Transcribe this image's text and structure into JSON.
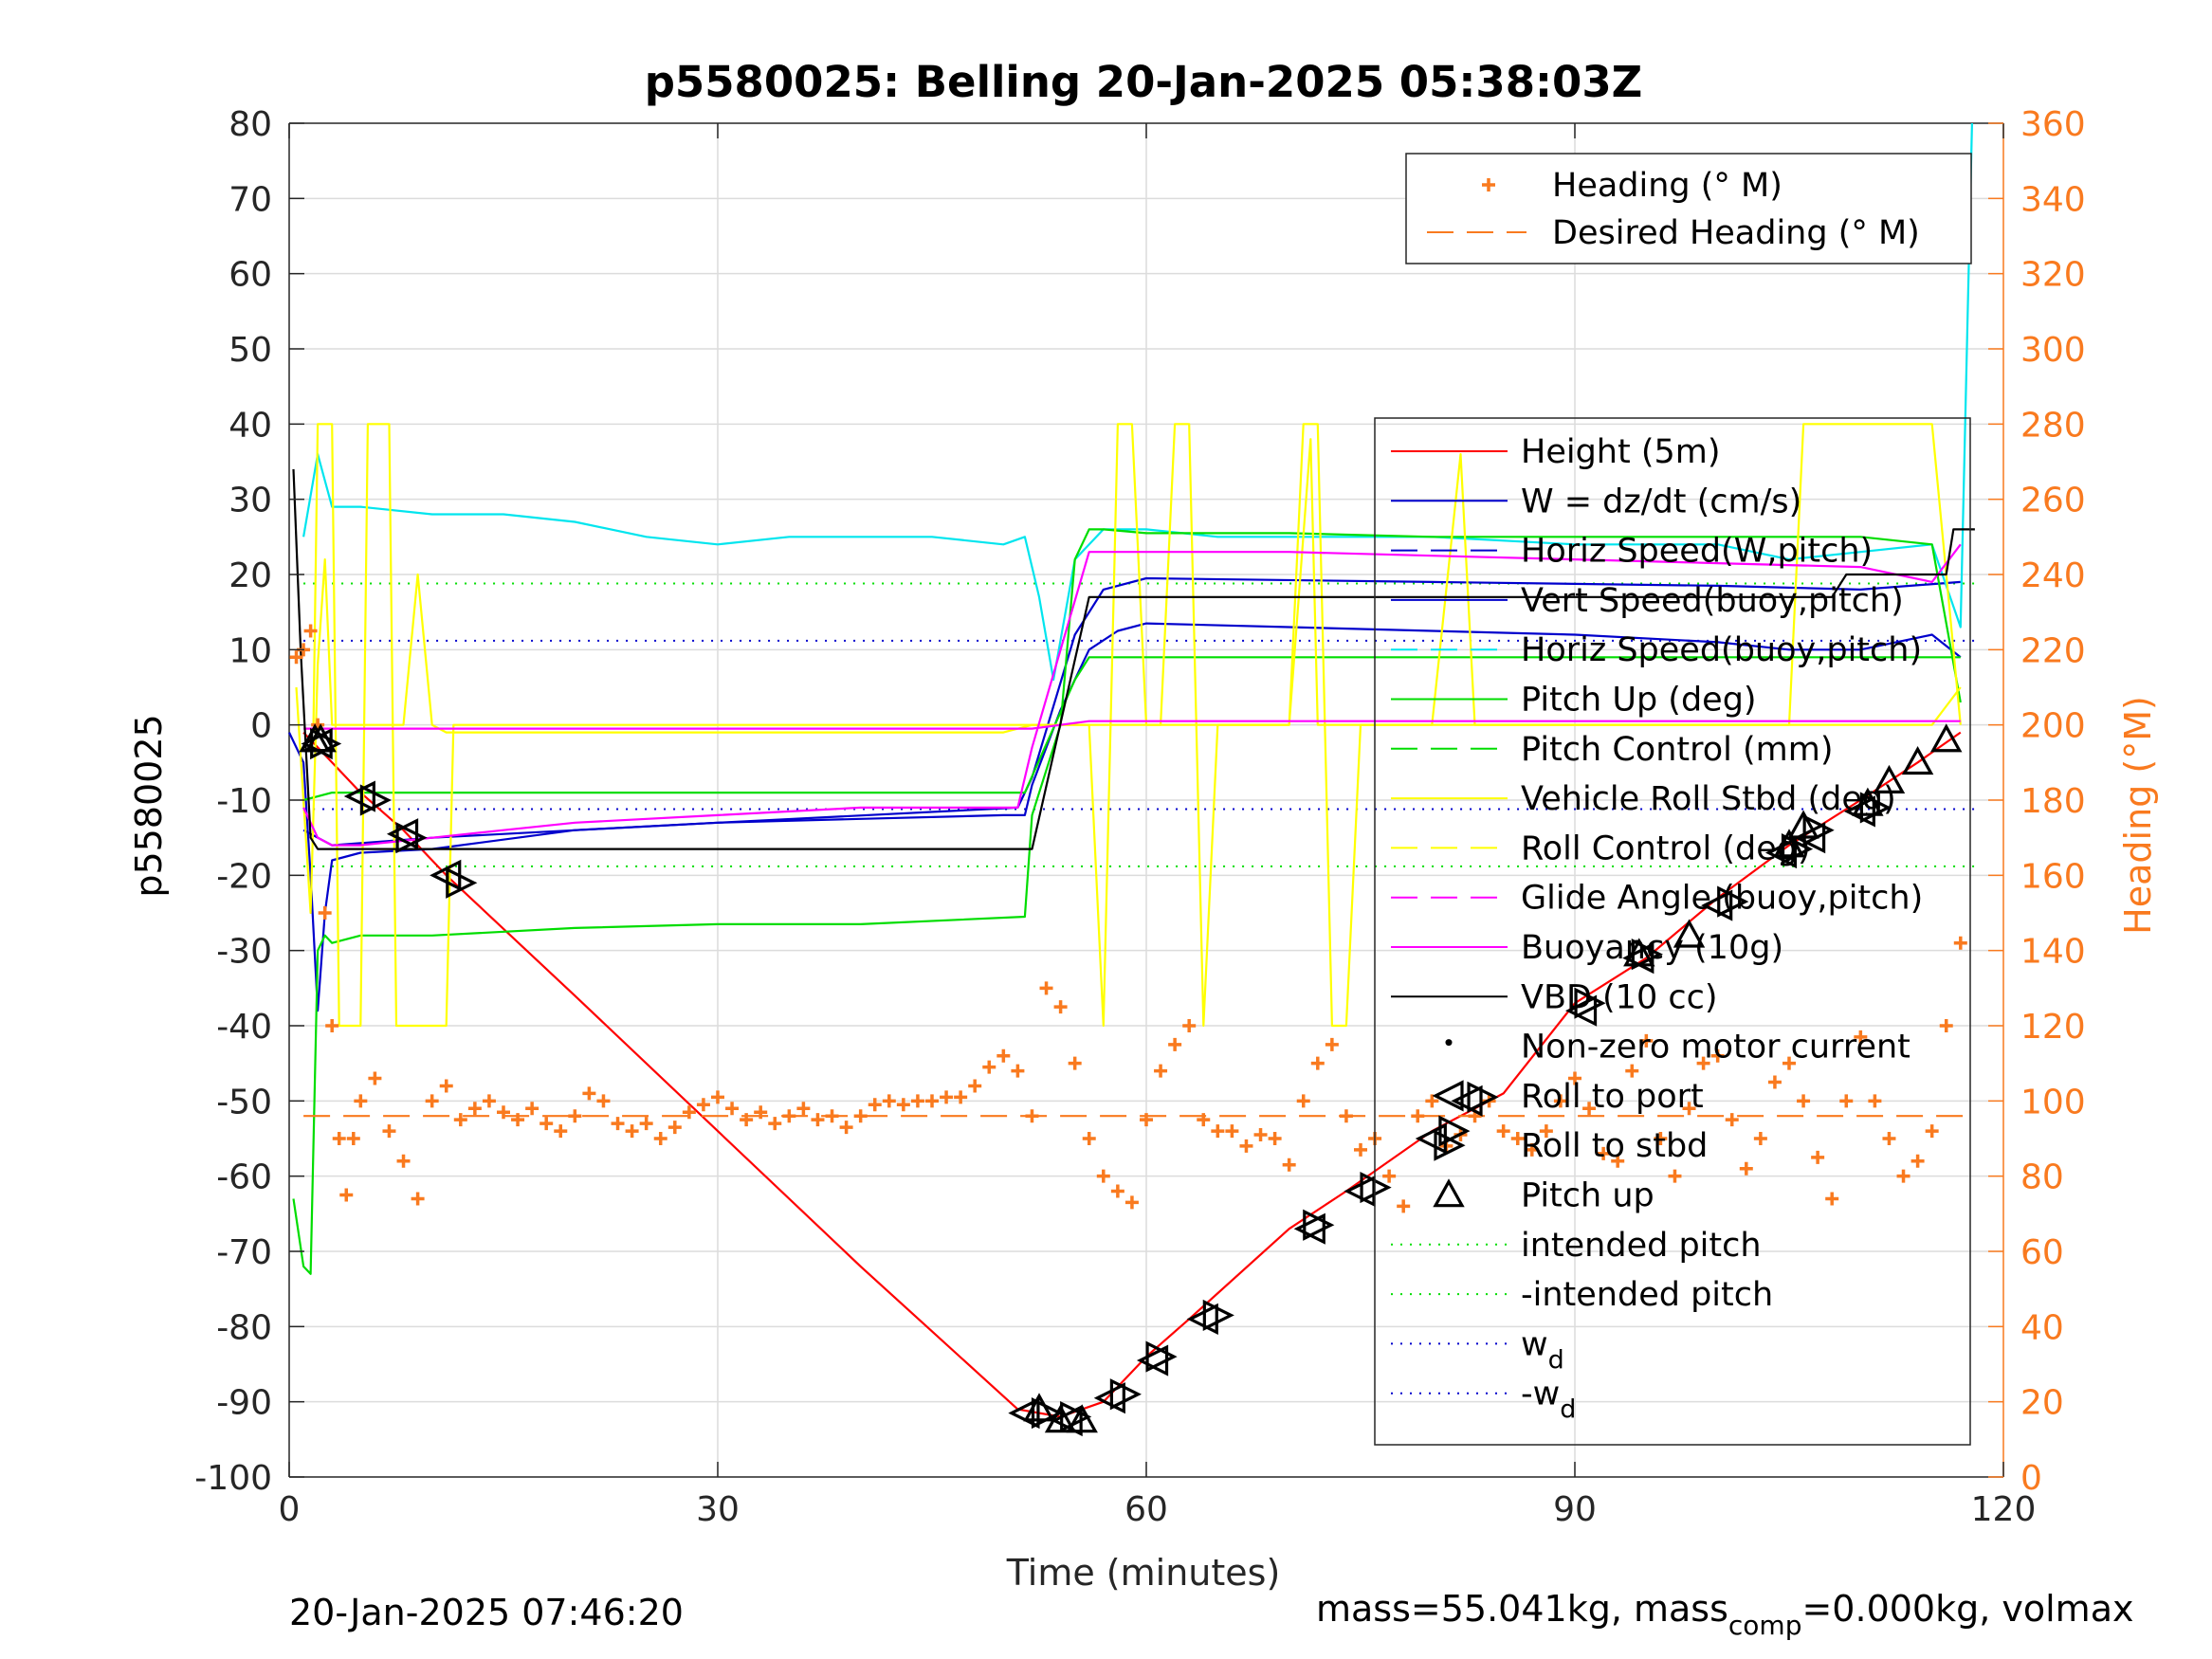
{
  "chart_data": {
    "type": "line",
    "title": "p5580025: Belling 20-Jan-2025 05:38:03Z",
    "xlabel": "Time (minutes)",
    "ylabel_left": "p5580025",
    "ylabel_right": "Heading (°M)",
    "xlim": [
      0,
      120
    ],
    "ylim_left": [
      -100,
      80
    ],
    "ylim_right": [
      0,
      360
    ],
    "xticks": [
      "0",
      "30",
      "60",
      "90",
      "120"
    ],
    "yticks_left": [
      "80",
      "70",
      "60",
      "50",
      "40",
      "30",
      "20",
      "10",
      "0",
      "-10",
      "-20",
      "-30",
      "-40",
      "-50",
      "-60",
      "-70",
      "-80",
      "-90",
      "-100"
    ],
    "yticks_right": [
      "360",
      "340",
      "320",
      "300",
      "280",
      "260",
      "240",
      "220",
      "200",
      "180",
      "160",
      "140",
      "120",
      "100",
      "80",
      "60",
      "40",
      "20",
      "0"
    ],
    "grid": true,
    "footer_left": "20-Jan-2025 07:46:20",
    "footer_right_text": "mass=55.041kg, mass",
    "footer_right_sub": "comp",
    "footer_right_tail": "=0.000kg, volmax",
    "heading_legend": [
      {
        "label": "Heading (° M)",
        "color": "#f97a1f",
        "style": "plus"
      },
      {
        "label": "Desired Heading (° M)",
        "color": "#f97a1f",
        "style": "dash"
      }
    ],
    "legend": [
      {
        "label": "Height (5m)",
        "color": "#ff0000",
        "style": "solid"
      },
      {
        "label": "W = dz/dt (cm/s)",
        "color": "#0000cc",
        "style": "solid"
      },
      {
        "label": "Horiz Speed(W,pitch)",
        "color": "#0000cc",
        "style": "dash"
      },
      {
        "label": "Vert Speed(buoy,pitch)",
        "color": "#0000cc",
        "style": "solid"
      },
      {
        "label": "Horiz Speed(buoy,pitch)",
        "color": "#00e5ee",
        "style": "dash"
      },
      {
        "label": "Pitch Up (deg)",
        "color": "#00dd00",
        "style": "solid"
      },
      {
        "label": "Pitch Control (mm)",
        "color": "#00dd00",
        "style": "dash"
      },
      {
        "label": "Vehicle Roll Stbd (deg)",
        "color": "#ffff00",
        "style": "solid"
      },
      {
        "label": "Roll Control (deg)",
        "color": "#ffff00",
        "style": "dash"
      },
      {
        "label": "Glide Angle (buoy,pitch)",
        "color": "#ff00ff",
        "style": "dash"
      },
      {
        "label": "Buoyancy (10g)",
        "color": "#ff00ff",
        "style": "solid"
      },
      {
        "label": "VBD (10 cc)",
        "color": "#000000",
        "style": "solid"
      },
      {
        "label": "Non-zero motor current",
        "color": "#000000",
        "style": "dot"
      },
      {
        "label": "Roll to port",
        "color": "#000000",
        "style": "tri-left"
      },
      {
        "label": "Roll to stbd",
        "color": "#000000",
        "style": "tri-right"
      },
      {
        "label": "Pitch up",
        "color": "#000000",
        "style": "tri-up"
      },
      {
        "label": "intended pitch",
        "color": "#00dd00",
        "style": "dot"
      },
      {
        "label": "-intended pitch",
        "color": "#00dd00",
        "style": "dot"
      },
      {
        "label": "w",
        "sub": "d",
        "color": "#0000cc",
        "style": "dot"
      },
      {
        "label": "-w",
        "sub": "d",
        "color": "#0000cc",
        "style": "dot"
      }
    ],
    "reference_lines": {
      "intended_pitch": 18.8,
      "w_d": 11.2,
      "desired_heading": 96
    },
    "series": [
      {
        "name": "Height (5m)",
        "color": "#ff0000",
        "x": [
          1,
          3,
          5,
          8,
          11,
          20,
          30,
          40,
          51,
          54,
          57,
          60,
          63,
          70,
          74,
          80,
          85,
          90,
          95,
          100,
          105,
          110,
          114,
          117
        ],
        "y": [
          -1,
          -5,
          -9,
          -14,
          -20,
          -36,
          -54,
          -72,
          -91,
          -92,
          -90,
          -84,
          -79,
          -67,
          -62,
          -54,
          -49,
          -37,
          -31,
          -23,
          -16,
          -10,
          -5,
          -1
        ]
      },
      {
        "name": "W = dz/dt (cm/s)",
        "color": "#0000cc",
        "x": [
          0,
          1,
          1.5,
          2,
          2.5,
          3,
          5,
          10,
          20,
          30,
          40,
          50,
          51.5,
          52,
          54,
          56,
          58,
          60,
          70,
          80,
          90,
          100,
          105,
          110,
          115,
          117
        ],
        "y": [
          -1,
          -5,
          -20,
          -38,
          -25,
          -18,
          -17,
          -16.5,
          -14,
          -13,
          -12.5,
          -12,
          -12,
          -8,
          2,
          10,
          12.5,
          13.5,
          13,
          12.5,
          12,
          11,
          10,
          10,
          12,
          9
        ]
      },
      {
        "name": "Horiz Speed(W,pitch)",
        "color": "#0000cc",
        "x": [
          1,
          3,
          10,
          30,
          51,
          52,
          55,
          57,
          60,
          80,
          100,
          110,
          117
        ],
        "y": [
          -14,
          -16,
          -15,
          -13,
          -11,
          -7,
          12,
          18,
          19.5,
          19,
          18.5,
          18,
          19
        ]
      },
      {
        "name": "Horiz Speed(buoy,pitch)",
        "color": "#00e5ee",
        "x": [
          1,
          2,
          3,
          5,
          10,
          15,
          20,
          25,
          30,
          35,
          40,
          45,
          50,
          51.5,
          52.5,
          53.5,
          55,
          57,
          60,
          65,
          70,
          80,
          90,
          100,
          105,
          110,
          115,
          117,
          117.8
        ],
        "y": [
          25,
          36,
          29,
          29,
          28,
          28,
          27,
          25,
          24,
          25,
          25,
          25,
          24,
          25,
          17,
          6,
          22,
          26,
          26,
          25,
          25,
          25,
          24,
          24,
          22,
          23,
          24,
          13,
          80
        ]
      },
      {
        "name": "Pitch Up (deg)",
        "color": "#00dd00",
        "x": [
          0.3,
          1,
          1.5,
          2,
          2.5,
          3,
          5,
          10,
          20,
          30,
          40,
          51.5,
          52,
          54,
          55,
          56,
          57,
          60,
          70,
          80,
          90,
          100,
          110,
          115,
          117
        ],
        "y": [
          -63,
          -72,
          -73,
          -30,
          -28,
          -29,
          -28,
          -28,
          -27,
          -26.5,
          -26.5,
          -25.5,
          -12,
          0,
          22,
          26,
          26,
          25.5,
          25.5,
          25,
          25,
          25,
          25,
          24,
          3
        ]
      },
      {
        "name": "Pitch Control (mm)",
        "color": "#00dd00",
        "x": [
          1,
          3,
          9,
          50,
          51.5,
          55,
          56,
          60,
          117
        ],
        "y": [
          -10,
          -9,
          -9,
          -9,
          -9,
          6,
          9,
          9,
          9
        ]
      },
      {
        "name": "Vehicle Roll Stbd (deg)",
        "color": "#ffff00",
        "x": [
          0.5,
          1.5,
          2,
          2.5,
          3,
          5,
          7,
          8,
          9,
          10,
          11,
          20,
          50,
          52,
          55,
          57,
          60,
          70,
          71.5,
          72,
          80,
          82,
          83,
          100,
          105,
          115,
          117
        ],
        "y": [
          5,
          -25,
          8,
          22,
          0,
          0,
          0,
          0,
          20,
          0,
          -1,
          -1,
          -1,
          0,
          0,
          0,
          0,
          0,
          38,
          0,
          0,
          36,
          0,
          0,
          0,
          0,
          5
        ]
      },
      {
        "name": "Roll Control (deg)",
        "color": "#ffff00",
        "x": [
          1.7,
          2,
          3,
          3.5,
          5,
          5.5,
          7,
          7.5,
          9,
          9.5,
          11,
          11.5,
          20,
          50,
          56,
          57,
          58,
          59,
          60,
          61,
          62,
          63,
          64,
          65,
          70,
          71,
          72,
          73,
          74,
          75,
          80,
          82,
          90,
          100,
          105,
          106,
          115,
          117
        ],
        "y": [
          0,
          40,
          40,
          -40,
          -40,
          40,
          40,
          -40,
          -40,
          -40,
          -40,
          0,
          0,
          0,
          0,
          -40,
          40,
          40,
          0,
          0,
          40,
          40,
          -40,
          0,
          0,
          40,
          40,
          -40,
          -40,
          0,
          0,
          0,
          0,
          0,
          0,
          40,
          40,
          0
        ]
      },
      {
        "name": "Glide Angle (buoy,pitch)",
        "color": "#ff00ff",
        "x": [
          1,
          50,
          52,
          56,
          117
        ],
        "y": [
          -0.5,
          -0.5,
          -0.5,
          0.5,
          0.5
        ]
      },
      {
        "name": "Buoyancy (10g)",
        "color": "#ff00ff",
        "x": [
          1,
          2,
          3,
          5,
          10,
          15,
          20,
          30,
          40,
          50,
          51,
          52,
          54,
          56,
          57,
          60,
          70,
          80,
          90,
          100,
          110,
          115,
          117
        ],
        "y": [
          -11,
          -15,
          -16,
          -16,
          -15,
          -14,
          -13,
          -12,
          -11,
          -11,
          -11,
          -3,
          10,
          23,
          23,
          23,
          23,
          22.5,
          22,
          21.5,
          21,
          19,
          24
        ]
      },
      {
        "name": "VBD (10 cc)",
        "color": "#000000",
        "x": [
          0.3,
          0.8,
          1.5,
          2,
          10,
          20,
          51.5,
          52,
          56,
          57,
          60,
          108,
          109,
          116,
          116.5,
          118
        ],
        "y": [
          34,
          10,
          -15,
          -16.5,
          -16.5,
          -16.5,
          -16.5,
          -16.5,
          17,
          17,
          17,
          17,
          20,
          20,
          26,
          26
        ]
      },
      {
        "name": "Heading (° M)",
        "color": "#f97a1f",
        "axis": "right",
        "style": "plus",
        "x": [
          0.5,
          1,
          1.5,
          2,
          2.5,
          3,
          3.5,
          4,
          4.5,
          5,
          6,
          7,
          8,
          9,
          10,
          11,
          12,
          13,
          14,
          15,
          16,
          17,
          18,
          19,
          20,
          21,
          22,
          23,
          24,
          25,
          26,
          27,
          28,
          29,
          30,
          31,
          32,
          33,
          34,
          35,
          36,
          37,
          38,
          39,
          40,
          41,
          42,
          43,
          44,
          45,
          46,
          47,
          48,
          49,
          50,
          51,
          52,
          53,
          54,
          55,
          56,
          57,
          58,
          59,
          60,
          61,
          62,
          63,
          64,
          65,
          66,
          67,
          68,
          69,
          70,
          71,
          72,
          73,
          74,
          75,
          76,
          77,
          78,
          79,
          80,
          81,
          82,
          83,
          84,
          85,
          86,
          87,
          88,
          89,
          90,
          91,
          92,
          93,
          94,
          95,
          96,
          97,
          98,
          99,
          100,
          101,
          102,
          103,
          104,
          105,
          106,
          107,
          108,
          109,
          110,
          111,
          112,
          113,
          114,
          115,
          116,
          117
        ],
        "y": [
          218,
          220,
          225,
          200,
          150,
          120,
          90,
          75,
          90,
          100,
          106,
          92,
          84,
          74,
          100,
          104,
          95,
          98,
          100,
          97,
          95,
          98,
          94,
          92,
          96,
          102,
          100,
          94,
          92,
          94,
          90,
          93,
          97,
          99,
          101,
          98,
          95,
          97,
          94,
          96,
          98,
          95,
          96,
          93,
          96,
          99,
          100,
          99,
          100,
          100,
          101,
          101,
          104,
          109,
          112,
          108,
          96,
          130,
          125,
          110,
          90,
          80,
          76,
          73,
          95,
          108,
          115,
          120,
          95,
          92,
          92,
          88,
          91,
          90,
          83,
          100,
          110,
          115,
          96,
          87,
          90,
          80,
          72,
          96,
          100,
          88,
          91,
          96,
          100,
          92,
          90,
          87,
          92,
          100,
          106,
          98,
          86,
          84,
          108,
          116,
          90,
          80,
          98,
          110,
          112,
          95,
          82,
          90,
          105,
          110,
          100,
          85,
          74,
          100,
          117,
          100,
          90,
          80,
          84,
          92,
          120,
          142
        ]
      },
      {
        "name": "Desired Heading (° M)",
        "color": "#f97a1f",
        "axis": "right",
        "style": "dash",
        "x": [
          1,
          118
        ],
        "y": [
          96,
          96
        ]
      }
    ],
    "markers": {
      "roll_to_port": [
        [
          2,
          -2.5
        ],
        [
          5,
          -9.5
        ],
        [
          8,
          -14.5
        ],
        [
          11,
          -20
        ],
        [
          51.5,
          -91.5
        ],
        [
          54.5,
          -92.5
        ],
        [
          57.5,
          -89.5
        ],
        [
          60.5,
          -84.5
        ],
        [
          64,
          -79
        ],
        [
          71.5,
          -67
        ],
        [
          75,
          -62
        ],
        [
          80,
          -55
        ],
        [
          82.5,
          -50
        ],
        [
          90.5,
          -38
        ],
        [
          94.5,
          -31
        ],
        [
          100,
          -24
        ],
        [
          104.5,
          -17
        ],
        [
          106.5,
          -15
        ],
        [
          110,
          -11.5
        ]
      ],
      "roll_to_stbd": [
        [
          2.5,
          -2.5
        ],
        [
          6,
          -10
        ],
        [
          8.5,
          -15
        ],
        [
          12,
          -21
        ],
        [
          53,
          -91.5
        ],
        [
          55,
          -92
        ],
        [
          58.5,
          -89
        ],
        [
          61,
          -84
        ],
        [
          65,
          -78.5
        ],
        [
          72,
          -66.5
        ],
        [
          76,
          -61.5
        ],
        [
          81.5,
          -54
        ],
        [
          83.5,
          -49.5
        ],
        [
          91,
          -37
        ],
        [
          95,
          -30.5
        ],
        [
          101,
          -23.5
        ],
        [
          105.5,
          -16.5
        ],
        [
          107,
          -14
        ],
        [
          111,
          -11
        ]
      ],
      "pitch_up": [
        [
          1.8,
          -2
        ],
        [
          2.2,
          -2
        ],
        [
          52.5,
          -91
        ],
        [
          54,
          -92.5
        ],
        [
          55.5,
          -92.5
        ],
        [
          94.5,
          -30.5
        ],
        [
          98,
          -28
        ],
        [
          105,
          -16
        ],
        [
          106,
          -13.5
        ],
        [
          110.5,
          -10.5
        ],
        [
          112,
          -7.5
        ],
        [
          114,
          -5
        ],
        [
          116,
          -2
        ]
      ]
    }
  }
}
